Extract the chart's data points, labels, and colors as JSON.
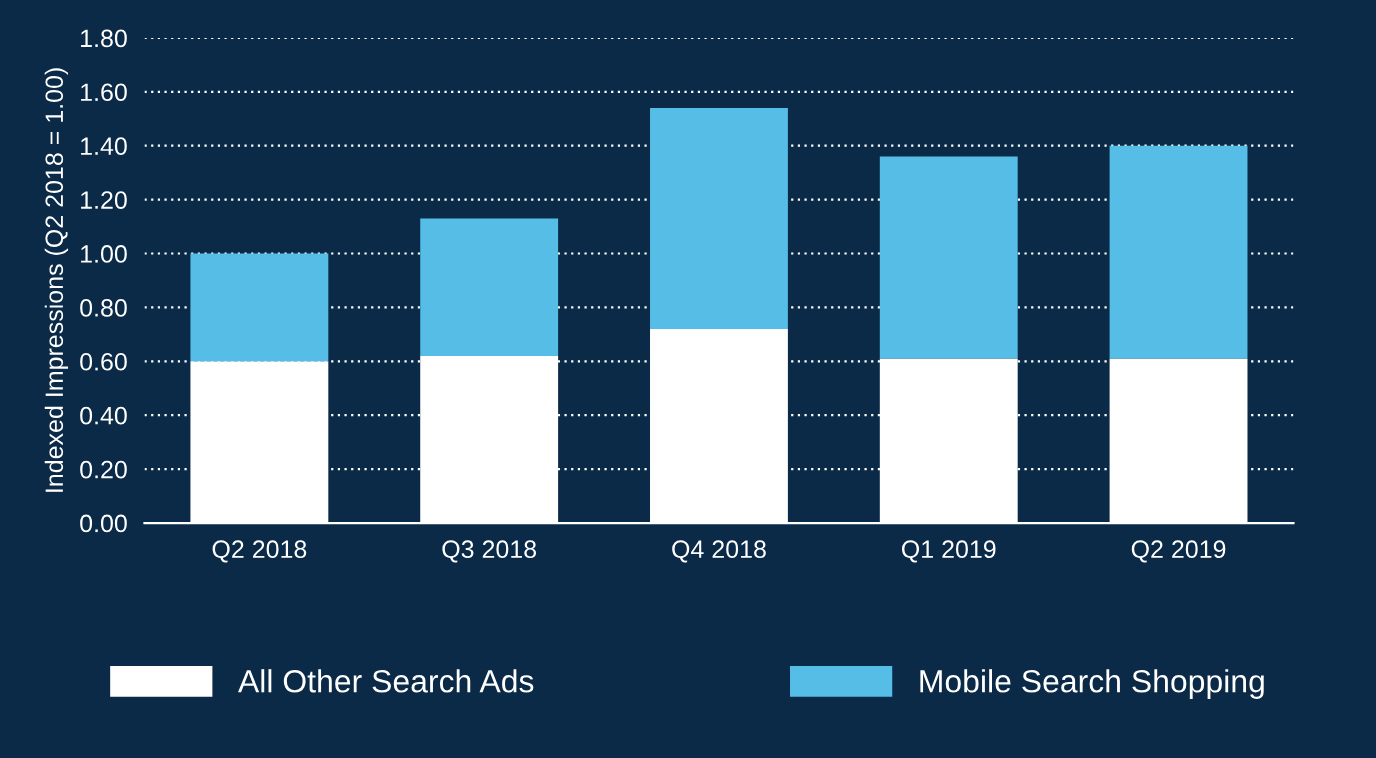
{
  "chart_data": {
    "type": "bar",
    "stacked": true,
    "ylabel": "Indexed Impressions (Q2 2018 = 1.00)",
    "categories": [
      "Q2 2018",
      "Q3 2018",
      "Q4 2018",
      "Q1 2019",
      "Q2 2019"
    ],
    "series": [
      {
        "name": "All Other Search Ads",
        "color": "#ffffff",
        "values": [
          0.6,
          0.62,
          0.72,
          0.61,
          0.61
        ]
      },
      {
        "name": "Mobile Search Shopping",
        "color": "#56bde6",
        "values": [
          0.4,
          0.51,
          0.82,
          0.75,
          0.79
        ]
      }
    ],
    "ylim": [
      0,
      1.8
    ],
    "yticks": [
      {
        "value": 0,
        "label": "0.00"
      },
      {
        "value": 0.2,
        "label": "0.20"
      },
      {
        "value": 0.4,
        "label": "0.40"
      },
      {
        "value": 0.6,
        "label": "0.60"
      },
      {
        "value": 0.8,
        "label": "0.80"
      },
      {
        "value": 1.0,
        "label": "1.00"
      },
      {
        "value": 1.2,
        "label": "1.20"
      },
      {
        "value": 1.4,
        "label": "1.40"
      },
      {
        "value": 1.6,
        "label": "1.60"
      },
      {
        "value": 1.8,
        "label": "1.80"
      }
    ],
    "grid": "y",
    "legend": "bottom"
  }
}
